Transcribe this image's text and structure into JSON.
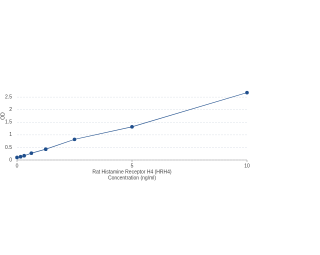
{
  "chart_data": {
    "type": "scatter",
    "x_label": "Rat Histamine Receptor H4 (HRH4)",
    "x_label_2": "Concentration (ng/ml)",
    "y_label": "OD",
    "x": [
      0,
      0.156,
      0.312,
      0.625,
      1.25,
      2.5,
      5,
      10
    ],
    "values": [
      0.1,
      0.13,
      0.17,
      0.27,
      0.43,
      0.82,
      1.32,
      2.68
    ],
    "color": "#1f4e8c",
    "xlim": [
      0,
      10
    ],
    "xticks": [
      0,
      5,
      10
    ],
    "ylim": [
      0,
      3.5
    ],
    "yticks": [
      0,
      0.5,
      1,
      1.5,
      2,
      2.5
    ],
    "grid": true
  }
}
